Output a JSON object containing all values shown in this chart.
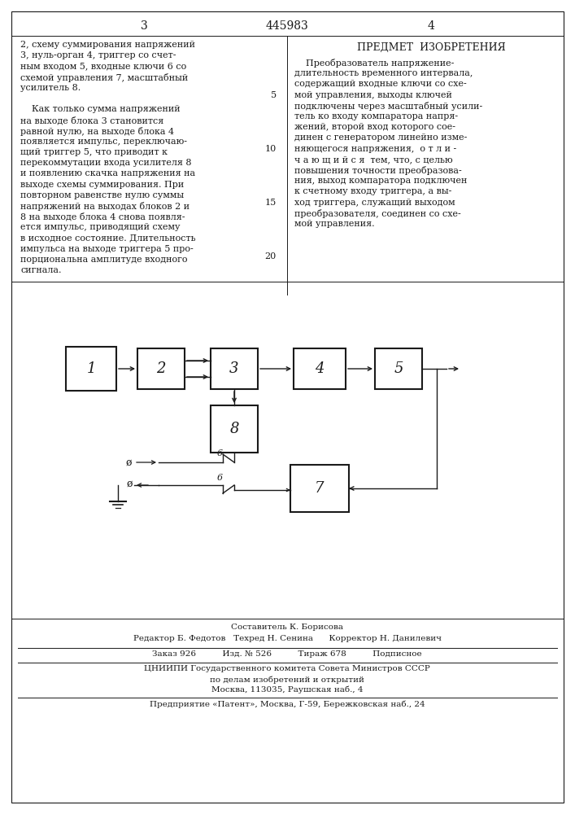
{
  "page_number_left": "3",
  "patent_number": "445983",
  "page_number_right": "4",
  "left_col_line1": "2, схему суммирования напряжений",
  "left_col_line2": "3, нуль-орган 4, триггер со счет-",
  "left_col_line3": "ным входом 5, входные ключи 6 со",
  "left_col_line4": "схемой управления 7, масштабный",
  "left_col_line5": "усилитель 8.",
  "left_col_para2": [
    "    Как только сумма напряжений",
    "на выходе блока 3 становится",
    "равной нулю, на выходе блока 4",
    "появляется импульс, переключаю-",
    "щий триггер 5, что приводит к",
    "перекоммутации входа усилителя 8",
    "и появлению скачка напряжения на",
    "выходе схемы суммирования. При",
    "повторном равенстве нулю суммы",
    "напряжений на выходах блоков 2 и",
    "8 на выходе блока 4 снова появля-",
    "ется импульс, приводящий схему",
    "в исходное состояние. Длительность",
    "импульса на выходе триггера 5 про-",
    "порциональна амплитуде входного",
    "сигнала."
  ],
  "line_numbers": [
    "5",
    "10",
    "15",
    "20"
  ],
  "right_col_title": "ПРЕДМЕТ  ИЗОБРЕТЕНИЯ",
  "right_col_text": [
    "    Преобразователь напряжение-",
    "длительность временного интервала,",
    "содержащий входные ключи со схе-",
    "мой управления, выходы ключей",
    "подключены через масштабный усили-",
    "тель ко входу компаратора напря-",
    "жений, второй вход которого сое-",
    "динен с генератором линейно изме-",
    "няющегося напряжения,  о т л и -",
    "ч а ю щ и й с я  тем, что, с целью",
    "повышения точности преобразова-",
    "ния, выход компаратора подключен",
    "к счетному входу триггера, а вы-",
    "ход триггера, служащий выходом",
    "преобразователя, соединен со схе-",
    "мой управления."
  ],
  "footer": [
    "Составитель К. Борисова",
    "Редактор Б. Федотов   Техред Н. Сенина      Корректор Н. Данилевич",
    "Заказ 926          Изд. № 526          Тираж 678          Подписное",
    "ЦНИИПИ Государственного комитета Совета Министров СССР",
    "по делам изобретений и открытий",
    "Москва, 113035, Раушская наб., 4",
    "Предприятие «Патент», Москва, Г-59, Бережковская наб., 24"
  ],
  "bg": "#ffffff",
  "fg": "#1a1a1a"
}
